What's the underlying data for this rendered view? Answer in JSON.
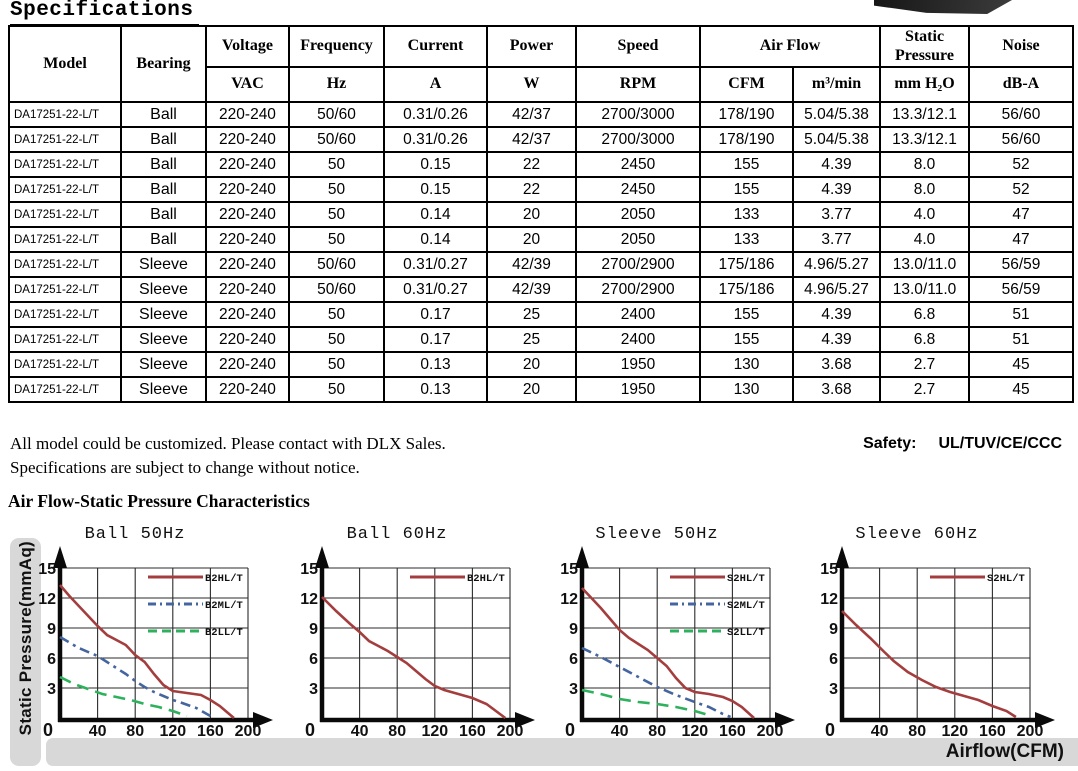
{
  "title": "Specifications",
  "table": {
    "header": {
      "model": "Model",
      "bearing": "Bearing",
      "voltage": "Voltage",
      "voltage_unit": "VAC",
      "frequency": "Frequency",
      "frequency_unit": "Hz",
      "current": "Current",
      "current_unit": "A",
      "power": "Power",
      "power_unit": "W",
      "speed": "Speed",
      "speed_unit": "RPM",
      "airflow": "Air Flow",
      "airflow_unit_cfm": "CFM",
      "airflow_unit_m3": "m³/min",
      "static_pressure": "Static Pressure",
      "static_pressure_unit": "mm H₂O",
      "noise": "Noise",
      "noise_unit": "dB-A"
    },
    "rows": [
      [
        "DA17251-22-L/T",
        "Ball",
        "220-240",
        "50/60",
        "0.31/0.26",
        "42/37",
        "2700/3000",
        "178/190",
        "5.04/5.38",
        "13.3/12.1",
        "56/60"
      ],
      [
        "DA17251-22-L/T",
        "Ball",
        "220-240",
        "50/60",
        "0.31/0.26",
        "42/37",
        "2700/3000",
        "178/190",
        "5.04/5.38",
        "13.3/12.1",
        "56/60"
      ],
      [
        "DA17251-22-L/T",
        "Ball",
        "220-240",
        "50",
        "0.15",
        "22",
        "2450",
        "155",
        "4.39",
        "8.0",
        "52"
      ],
      [
        "DA17251-22-L/T",
        "Ball",
        "220-240",
        "50",
        "0.15",
        "22",
        "2450",
        "155",
        "4.39",
        "8.0",
        "52"
      ],
      [
        "DA17251-22-L/T",
        "Ball",
        "220-240",
        "50",
        "0.14",
        "20",
        "2050",
        "133",
        "3.77",
        "4.0",
        "47"
      ],
      [
        "DA17251-22-L/T",
        "Ball",
        "220-240",
        "50",
        "0.14",
        "20",
        "2050",
        "133",
        "3.77",
        "4.0",
        "47"
      ],
      [
        "DA17251-22-L/T",
        "Sleeve",
        "220-240",
        "50/60",
        "0.31/0.27",
        "42/39",
        "2700/2900",
        "175/186",
        "4.96/5.27",
        "13.0/11.0",
        "56/59"
      ],
      [
        "DA17251-22-L/T",
        "Sleeve",
        "220-240",
        "50/60",
        "0.31/0.27",
        "42/39",
        "2700/2900",
        "175/186",
        "4.96/5.27",
        "13.0/11.0",
        "56/59"
      ],
      [
        "DA17251-22-L/T",
        "Sleeve",
        "220-240",
        "50",
        "0.17",
        "25",
        "2400",
        "155",
        "4.39",
        "6.8",
        "51"
      ],
      [
        "DA17251-22-L/T",
        "Sleeve",
        "220-240",
        "50",
        "0.17",
        "25",
        "2400",
        "155",
        "4.39",
        "6.8",
        "51"
      ],
      [
        "DA17251-22-L/T",
        "Sleeve",
        "220-240",
        "50",
        "0.13",
        "20",
        "1950",
        "130",
        "3.68",
        "2.7",
        "45"
      ],
      [
        "DA17251-22-L/T",
        "Sleeve",
        "220-240",
        "50",
        "0.13",
        "20",
        "1950",
        "130",
        "3.68",
        "2.7",
        "45"
      ]
    ]
  },
  "notes": {
    "line1": "All model could be customized. Please contact with DLX Sales.",
    "line2": "Specifications are subject to change without notice."
  },
  "safety": {
    "label": "Safety:",
    "value": "UL/TUV/CE/CCC"
  },
  "charts_section": {
    "heading": "Air Flow-Static Pressure Characteristics",
    "y_axis_label": "Static Pressure(mmAq)",
    "x_axis_label": "Airflow(CFM)"
  },
  "colors": {
    "series_red": "#a43e3e",
    "series_blue": "#44659f",
    "series_green": "#2db15d",
    "band_gray": "#d8d8d8"
  },
  "chart_data": [
    {
      "type": "line",
      "title": "Ball 50Hz",
      "xlabel": "Airflow(CFM)",
      "ylabel": "Static Pressure(mmAq)",
      "xlim": [
        0,
        200
      ],
      "ylim": [
        0,
        15
      ],
      "x_ticks": [
        0,
        40,
        80,
        120,
        160,
        200
      ],
      "y_ticks": [
        0,
        3,
        6,
        9,
        12,
        15
      ],
      "grid": true,
      "legend_position": "top-right",
      "series": [
        {
          "name": "B2HL/T",
          "color": "#a43e3e",
          "style": "solid",
          "points": [
            [
              0,
              13.3
            ],
            [
              10,
              12.2
            ],
            [
              20,
              11.2
            ],
            [
              30,
              10.2
            ],
            [
              40,
              9.2
            ],
            [
              50,
              8.3
            ],
            [
              60,
              7.8
            ],
            [
              70,
              7.3
            ],
            [
              80,
              6.3
            ],
            [
              90,
              5.6
            ],
            [
              100,
              4.4
            ],
            [
              110,
              3.3
            ],
            [
              120,
              2.7
            ],
            [
              135,
              2.5
            ],
            [
              150,
              2.3
            ],
            [
              160,
              1.8
            ],
            [
              170,
              1.2
            ],
            [
              185,
              0
            ]
          ]
        },
        {
          "name": "B2ML/T",
          "color": "#44659f",
          "style": "dashdot",
          "points": [
            [
              0,
              8.1
            ],
            [
              20,
              7.0
            ],
            [
              40,
              6.2
            ],
            [
              50,
              5.6
            ],
            [
              60,
              5.0
            ],
            [
              70,
              4.4
            ],
            [
              80,
              3.7
            ],
            [
              90,
              3.1
            ],
            [
              100,
              2.6
            ],
            [
              110,
              2.2
            ],
            [
              120,
              1.8
            ],
            [
              130,
              1.5
            ],
            [
              145,
              1.0
            ],
            [
              160,
              0.2
            ]
          ]
        },
        {
          "name": "B2LL/T",
          "color": "#2db15d",
          "style": "dashed",
          "points": [
            [
              0,
              4.1
            ],
            [
              15,
              3.4
            ],
            [
              30,
              2.9
            ],
            [
              45,
              2.4
            ],
            [
              60,
              2.1
            ],
            [
              75,
              1.8
            ],
            [
              90,
              1.4
            ],
            [
              105,
              1.1
            ],
            [
              120,
              0.7
            ],
            [
              135,
              0.2
            ]
          ]
        }
      ]
    },
    {
      "type": "line",
      "title": "Ball 60Hz",
      "xlabel": "Airflow(CFM)",
      "ylabel": "Static Pressure(mmAq)",
      "xlim": [
        0,
        200
      ],
      "ylim": [
        0,
        15
      ],
      "x_ticks": [
        0,
        40,
        80,
        120,
        160,
        200
      ],
      "y_ticks": [
        0,
        3,
        6,
        9,
        12,
        15
      ],
      "grid": true,
      "legend_position": "top-right",
      "series": [
        {
          "name": "B2HL/T",
          "color": "#a43e3e",
          "style": "solid",
          "points": [
            [
              0,
              12.1
            ],
            [
              15,
              10.7
            ],
            [
              30,
              9.4
            ],
            [
              40,
              8.6
            ],
            [
              50,
              7.7
            ],
            [
              60,
              7.2
            ],
            [
              70,
              6.7
            ],
            [
              80,
              6.1
            ],
            [
              90,
              5.5
            ],
            [
              100,
              4.7
            ],
            [
              110,
              3.9
            ],
            [
              120,
              3.2
            ],
            [
              130,
              2.8
            ],
            [
              145,
              2.4
            ],
            [
              160,
              2.0
            ],
            [
              175,
              1.4
            ],
            [
              195,
              0
            ]
          ]
        }
      ]
    },
    {
      "type": "line",
      "title": "Sleeve 50Hz",
      "xlabel": "Airflow(CFM)",
      "ylabel": "Static Pressure(mmAq)",
      "xlim": [
        0,
        200
      ],
      "ylim": [
        0,
        15
      ],
      "x_ticks": [
        0,
        40,
        80,
        120,
        160,
        200
      ],
      "y_ticks": [
        0,
        3,
        6,
        9,
        12,
        15
      ],
      "grid": true,
      "legend_position": "top-right",
      "series": [
        {
          "name": "S2HL/T",
          "color": "#a43e3e",
          "style": "solid",
          "points": [
            [
              0,
              13.0
            ],
            [
              10,
              12.0
            ],
            [
              20,
              11.0
            ],
            [
              30,
              9.9
            ],
            [
              40,
              8.8
            ],
            [
              50,
              8.0
            ],
            [
              60,
              7.4
            ],
            [
              70,
              6.8
            ],
            [
              80,
              6.0
            ],
            [
              90,
              5.2
            ],
            [
              100,
              4.0
            ],
            [
              110,
              3.0
            ],
            [
              120,
              2.6
            ],
            [
              135,
              2.4
            ],
            [
              150,
              2.1
            ],
            [
              160,
              1.7
            ],
            [
              170,
              1.1
            ],
            [
              183,
              0
            ]
          ]
        },
        {
          "name": "S2ML/T",
          "color": "#44659f",
          "style": "dashdot",
          "points": [
            [
              0,
              7.0
            ],
            [
              20,
              6.1
            ],
            [
              40,
              5.1
            ],
            [
              60,
              4.1
            ],
            [
              80,
              3.1
            ],
            [
              100,
              2.3
            ],
            [
              120,
              1.6
            ],
            [
              135,
              1.1
            ],
            [
              150,
              0.4
            ],
            [
              158,
              0.1
            ]
          ]
        },
        {
          "name": "S2LL/T",
          "color": "#2db15d",
          "style": "dashed",
          "points": [
            [
              0,
              2.8
            ],
            [
              20,
              2.4
            ],
            [
              40,
              1.9
            ],
            [
              60,
              1.6
            ],
            [
              80,
              1.4
            ],
            [
              100,
              1.1
            ],
            [
              120,
              0.7
            ],
            [
              138,
              0.2
            ]
          ]
        }
      ]
    },
    {
      "type": "line",
      "title": "Sleeve 60Hz",
      "xlabel": "Airflow(CFM)",
      "ylabel": "Static Pressure(mmAq)",
      "xlim": [
        0,
        200
      ],
      "ylim": [
        0,
        15
      ],
      "x_ticks": [
        0,
        40,
        80,
        120,
        160,
        200
      ],
      "y_ticks": [
        0,
        3,
        6,
        9,
        12,
        15
      ],
      "grid": true,
      "legend_position": "top-right",
      "series": [
        {
          "name": "S2HL/T",
          "color": "#a43e3e",
          "style": "solid",
          "points": [
            [
              0,
              10.7
            ],
            [
              15,
              9.3
            ],
            [
              30,
              8.0
            ],
            [
              45,
              6.6
            ],
            [
              55,
              5.7
            ],
            [
              70,
              4.6
            ],
            [
              85,
              3.8
            ],
            [
              100,
              3.1
            ],
            [
              115,
              2.6
            ],
            [
              130,
              2.2
            ],
            [
              145,
              1.8
            ],
            [
              160,
              1.2
            ],
            [
              175,
              0.7
            ],
            [
              185,
              0.1
            ]
          ]
        }
      ]
    }
  ]
}
